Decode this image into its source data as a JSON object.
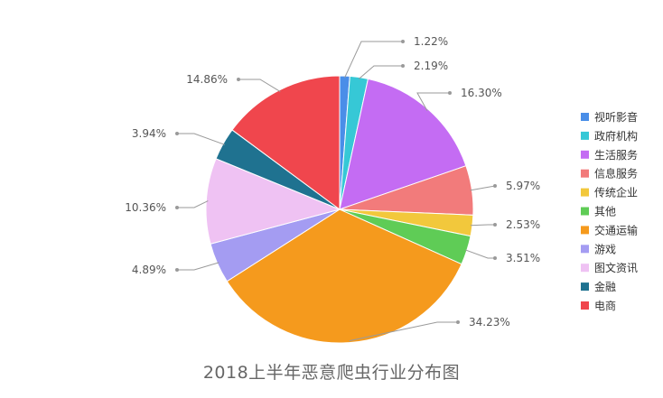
{
  "chart_data": {
    "type": "pie",
    "title": "2018上半年恶意爬虫行业分布图",
    "legend_position": "right",
    "series": [
      {
        "name": "视听影音",
        "value": 1.22,
        "label": "1.22%",
        "color": "#4a8ee8"
      },
      {
        "name": "政府机构",
        "value": 2.19,
        "label": "2.19%",
        "color": "#36c8d6"
      },
      {
        "name": "生活服务",
        "value": 16.3,
        "label": "16.30%",
        "color": "#c46cf3"
      },
      {
        "name": "信息服务",
        "value": 5.97,
        "label": "5.97%",
        "color": "#f27b7b"
      },
      {
        "name": "传统企业",
        "value": 2.53,
        "label": "2.53%",
        "color": "#f2c83c"
      },
      {
        "name": "其他",
        "value": 3.51,
        "label": "3.51%",
        "color": "#5fcc56"
      },
      {
        "name": "交通运输",
        "value": 34.23,
        "label": "34.23%",
        "color": "#f59a1d"
      },
      {
        "name": "游戏",
        "value": 4.89,
        "label": "4.89%",
        "color": "#a49cf2"
      },
      {
        "name": "图文资讯",
        "value": 10.36,
        "label": "10.36%",
        "color": "#efc2f3"
      },
      {
        "name": "金融",
        "value": 3.94,
        "label": "3.94%",
        "color": "#1f7290"
      },
      {
        "name": "电商",
        "value": 14.86,
        "label": "14.86%",
        "color": "#f0464d"
      }
    ]
  }
}
